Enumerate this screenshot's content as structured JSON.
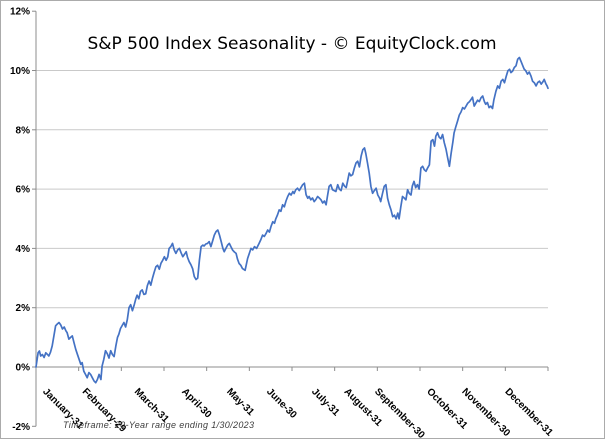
{
  "window": {
    "background": "#ffffff",
    "border_color": "#ababab"
  },
  "colors": {
    "line": "#4472c4",
    "grid": "#c9c9c9",
    "axis": "#8c8c8c",
    "tick": "#8c8c8c",
    "label_text": "#000000",
    "footnote_text": "#3c3c3c"
  },
  "chart_data": {
    "type": "line",
    "title": "S&P 500 Index Seasonality - © EquityClock.com",
    "footnote": "Timeframe: 20-Year range ending 1/30/2023",
    "xlabel": "",
    "ylabel": "",
    "y_axis": {
      "min": -2,
      "max": 12,
      "step": 2,
      "unit": "%"
    },
    "y_tick_labels": [
      "12%",
      "10%",
      "8%",
      "6%",
      "4%",
      "2%",
      "0%",
      "-2%"
    ],
    "y_tick_values": [
      12,
      10,
      8,
      6,
      4,
      2,
      0,
      -2
    ],
    "gridline_values": [
      2,
      4,
      6,
      8,
      10
    ],
    "x_axis_crosses_at": 0,
    "x_range_months": [
      0,
      12
    ],
    "x_tick_labels": [
      "January-31",
      "February-29",
      "March-31",
      "April-30",
      "May-31",
      "June-30",
      "July-31",
      "August-31",
      "September-30",
      "October-31",
      "November-30",
      "December-31"
    ],
    "grid": true,
    "legend_position": "none",
    "series": [
      {
        "color": "#4472c4",
        "x_unit": "months elapsed since Jan 1 (0 to 12)",
        "y_unit": "cumulative % change",
        "points": [
          [
            0.0,
            0.0
          ],
          [
            0.05,
            0.48
          ],
          [
            0.08,
            0.54
          ],
          [
            0.11,
            0.37
          ],
          [
            0.15,
            0.42
          ],
          [
            0.19,
            0.32
          ],
          [
            0.23,
            0.48
          ],
          [
            0.27,
            0.42
          ],
          [
            0.3,
            0.37
          ],
          [
            0.34,
            0.5
          ],
          [
            0.38,
            0.71
          ],
          [
            0.42,
            1.05
          ],
          [
            0.46,
            1.39
          ],
          [
            0.5,
            1.45
          ],
          [
            0.54,
            1.5
          ],
          [
            0.58,
            1.42
          ],
          [
            0.62,
            1.28
          ],
          [
            0.66,
            1.35
          ],
          [
            0.7,
            1.22
          ],
          [
            0.73,
            1.16
          ],
          [
            0.77,
            0.94
          ],
          [
            0.81,
            1.0
          ],
          [
            0.85,
            1.05
          ],
          [
            0.89,
            0.82
          ],
          [
            0.93,
            0.6
          ],
          [
            0.97,
            0.43
          ],
          [
            1.01,
            0.26
          ],
          [
            1.05,
            0.09
          ],
          [
            1.08,
            0.15
          ],
          [
            1.12,
            -0.14
          ],
          [
            1.16,
            -0.25
          ],
          [
            1.2,
            -0.36
          ],
          [
            1.24,
            -0.19
          ],
          [
            1.28,
            -0.25
          ],
          [
            1.32,
            -0.36
          ],
          [
            1.36,
            -0.47
          ],
          [
            1.4,
            -0.53
          ],
          [
            1.44,
            -0.42
          ],
          [
            1.48,
            -0.25
          ],
          [
            1.52,
            -0.42
          ],
          [
            1.55,
            0.03
          ],
          [
            1.59,
            0.26
          ],
          [
            1.63,
            0.55
          ],
          [
            1.67,
            0.45
          ],
          [
            1.71,
            0.3
          ],
          [
            1.75,
            0.55
          ],
          [
            1.79,
            0.42
          ],
          [
            1.83,
            0.35
          ],
          [
            1.87,
            0.7
          ],
          [
            1.91,
            1.0
          ],
          [
            1.94,
            1.1
          ],
          [
            1.98,
            1.3
          ],
          [
            2.02,
            1.4
          ],
          [
            2.06,
            1.5
          ],
          [
            2.1,
            1.35
          ],
          [
            2.14,
            1.6
          ],
          [
            2.18,
            2.0
          ],
          [
            2.22,
            2.1
          ],
          [
            2.26,
            1.9
          ],
          [
            2.3,
            2.08
          ],
          [
            2.34,
            2.3
          ],
          [
            2.37,
            2.42
          ],
          [
            2.41,
            2.3
          ],
          [
            2.45,
            2.55
          ],
          [
            2.49,
            2.6
          ],
          [
            2.53,
            2.45
          ],
          [
            2.57,
            2.47
          ],
          [
            2.61,
            2.75
          ],
          [
            2.65,
            2.9
          ],
          [
            2.69,
            2.76
          ],
          [
            2.73,
            3.0
          ],
          [
            2.77,
            3.2
          ],
          [
            2.81,
            3.38
          ],
          [
            2.85,
            3.43
          ],
          [
            2.89,
            3.3
          ],
          [
            2.93,
            3.5
          ],
          [
            2.97,
            3.6
          ],
          [
            3.01,
            3.72
          ],
          [
            3.05,
            3.6
          ],
          [
            3.09,
            3.72
          ],
          [
            3.12,
            4.0
          ],
          [
            3.16,
            4.06
          ],
          [
            3.2,
            4.17
          ],
          [
            3.24,
            3.95
          ],
          [
            3.28,
            3.83
          ],
          [
            3.32,
            3.95
          ],
          [
            3.36,
            4.0
          ],
          [
            3.4,
            3.85
          ],
          [
            3.44,
            3.72
          ],
          [
            3.48,
            3.8
          ],
          [
            3.52,
            3.89
          ],
          [
            3.55,
            3.7
          ],
          [
            3.59,
            3.55
          ],
          [
            3.63,
            3.45
          ],
          [
            3.67,
            3.32
          ],
          [
            3.71,
            3.05
          ],
          [
            3.75,
            2.95
          ],
          [
            3.79,
            3.0
          ],
          [
            3.83,
            3.6
          ],
          [
            3.87,
            4.06
          ],
          [
            3.91,
            4.11
          ],
          [
            3.94,
            4.08
          ],
          [
            3.98,
            4.15
          ],
          [
            4.02,
            4.17
          ],
          [
            4.06,
            4.23
          ],
          [
            4.1,
            4.06
          ],
          [
            4.14,
            4.25
          ],
          [
            4.18,
            4.45
          ],
          [
            4.22,
            4.57
          ],
          [
            4.26,
            4.62
          ],
          [
            4.3,
            4.45
          ],
          [
            4.34,
            4.23
          ],
          [
            4.38,
            4.0
          ],
          [
            4.41,
            3.89
          ],
          [
            4.45,
            4.0
          ],
          [
            4.49,
            4.11
          ],
          [
            4.53,
            4.17
          ],
          [
            4.57,
            4.05
          ],
          [
            4.61,
            3.94
          ],
          [
            4.65,
            3.88
          ],
          [
            4.69,
            3.83
          ],
          [
            4.72,
            3.65
          ],
          [
            4.76,
            3.49
          ],
          [
            4.8,
            3.43
          ],
          [
            4.84,
            3.32
          ],
          [
            4.9,
            3.26
          ],
          [
            4.96,
            3.66
          ],
          [
            5.04,
            4.0
          ],
          [
            5.08,
            3.95
          ],
          [
            5.12,
            4.06
          ],
          [
            5.17,
            4.0
          ],
          [
            5.23,
            4.17
          ],
          [
            5.27,
            4.3
          ],
          [
            5.31,
            4.45
          ],
          [
            5.35,
            4.4
          ],
          [
            5.39,
            4.5
          ],
          [
            5.43,
            4.62
          ],
          [
            5.47,
            4.55
          ],
          [
            5.51,
            4.75
          ],
          [
            5.55,
            4.9
          ],
          [
            5.59,
            4.85
          ],
          [
            5.62,
            5.0
          ],
          [
            5.66,
            5.13
          ],
          [
            5.7,
            5.3
          ],
          [
            5.74,
            5.25
          ],
          [
            5.78,
            5.47
          ],
          [
            5.82,
            5.4
          ],
          [
            5.86,
            5.6
          ],
          [
            5.9,
            5.75
          ],
          [
            5.94,
            5.86
          ],
          [
            5.98,
            5.8
          ],
          [
            6.02,
            5.92
          ],
          [
            6.05,
            5.85
          ],
          [
            6.09,
            5.98
          ],
          [
            6.13,
            6.03
          ],
          [
            6.17,
            5.95
          ],
          [
            6.21,
            6.05
          ],
          [
            6.25,
            6.15
          ],
          [
            6.29,
            6.2
          ],
          [
            6.33,
            5.81
          ],
          [
            6.37,
            5.69
          ],
          [
            6.4,
            5.75
          ],
          [
            6.44,
            5.64
          ],
          [
            6.48,
            5.7
          ],
          [
            6.52,
            5.58
          ],
          [
            6.56,
            5.65
          ],
          [
            6.6,
            5.75
          ],
          [
            6.64,
            5.7
          ],
          [
            6.68,
            5.64
          ],
          [
            6.72,
            5.53
          ],
          [
            6.76,
            5.6
          ],
          [
            6.8,
            5.47
          ],
          [
            6.83,
            5.75
          ],
          [
            6.87,
            6.09
          ],
          [
            6.91,
            6.15
          ],
          [
            6.95,
            5.98
          ],
          [
            6.99,
            5.95
          ],
          [
            7.03,
            5.92
          ],
          [
            7.07,
            6.15
          ],
          [
            7.11,
            6.0
          ],
          [
            7.15,
            5.95
          ],
          [
            7.19,
            6.2
          ],
          [
            7.23,
            6.1
          ],
          [
            7.27,
            6.05
          ],
          [
            7.3,
            6.26
          ],
          [
            7.34,
            6.54
          ],
          [
            7.38,
            6.45
          ],
          [
            7.42,
            6.49
          ],
          [
            7.46,
            6.7
          ],
          [
            7.5,
            6.88
          ],
          [
            7.54,
            6.94
          ],
          [
            7.58,
            6.75
          ],
          [
            7.62,
            7.11
          ],
          [
            7.66,
            7.33
          ],
          [
            7.7,
            7.39
          ],
          [
            7.73,
            7.2
          ],
          [
            7.77,
            6.88
          ],
          [
            7.81,
            6.54
          ],
          [
            7.85,
            6.09
          ],
          [
            7.89,
            5.86
          ],
          [
            7.93,
            5.95
          ],
          [
            7.97,
            6.03
          ],
          [
            8.01,
            5.8
          ],
          [
            8.05,
            5.7
          ],
          [
            8.08,
            5.58
          ],
          [
            8.12,
            5.85
          ],
          [
            8.16,
            6.09
          ],
          [
            8.2,
            6.15
          ],
          [
            8.24,
            5.69
          ],
          [
            8.28,
            5.47
          ],
          [
            8.32,
            5.3
          ],
          [
            8.36,
            5.07
          ],
          [
            8.4,
            5.12
          ],
          [
            8.44,
            5.0
          ],
          [
            8.48,
            5.19
          ],
          [
            8.51,
            5.0
          ],
          [
            8.55,
            5.4
          ],
          [
            8.59,
            5.75
          ],
          [
            8.63,
            5.7
          ],
          [
            8.67,
            5.64
          ],
          [
            8.71,
            5.98
          ],
          [
            8.75,
            5.85
          ],
          [
            8.79,
            5.8
          ],
          [
            8.82,
            6.1
          ],
          [
            8.86,
            6.26
          ],
          [
            8.9,
            6.05
          ],
          [
            8.94,
            6.15
          ],
          [
            8.98,
            6.0
          ],
          [
            9.02,
            6.71
          ],
          [
            9.06,
            6.77
          ],
          [
            9.1,
            6.65
          ],
          [
            9.14,
            6.6
          ],
          [
            9.18,
            6.72
          ],
          [
            9.22,
            6.82
          ],
          [
            9.26,
            7.62
          ],
          [
            9.3,
            7.67
          ],
          [
            9.34,
            7.45
          ],
          [
            9.37,
            7.78
          ],
          [
            9.41,
            7.9
          ],
          [
            9.45,
            7.75
          ],
          [
            9.49,
            7.7
          ],
          [
            9.53,
            7.84
          ],
          [
            9.57,
            7.56
          ],
          [
            9.61,
            7.35
          ],
          [
            9.65,
            7.05
          ],
          [
            9.69,
            6.77
          ],
          [
            9.73,
            7.2
          ],
          [
            9.77,
            7.6
          ],
          [
            9.8,
            7.9
          ],
          [
            9.84,
            8.1
          ],
          [
            9.88,
            8.29
          ],
          [
            9.92,
            8.5
          ],
          [
            9.96,
            8.6
          ],
          [
            10.0,
            8.75
          ],
          [
            10.04,
            8.7
          ],
          [
            10.08,
            8.8
          ],
          [
            10.12,
            8.9
          ],
          [
            10.16,
            8.95
          ],
          [
            10.2,
            9.03
          ],
          [
            10.23,
            9.1
          ],
          [
            10.27,
            8.8
          ],
          [
            10.31,
            8.9
          ],
          [
            10.35,
            9.0
          ],
          [
            10.39,
            8.95
          ],
          [
            10.43,
            9.08
          ],
          [
            10.47,
            9.14
          ],
          [
            10.51,
            8.95
          ],
          [
            10.54,
            8.86
          ],
          [
            10.58,
            8.92
          ],
          [
            10.62,
            8.75
          ],
          [
            10.66,
            8.8
          ],
          [
            10.7,
            8.72
          ],
          [
            10.73,
            9.0
          ],
          [
            10.78,
            9.3
          ],
          [
            10.82,
            9.48
          ],
          [
            10.86,
            9.4
          ],
          [
            10.9,
            9.64
          ],
          [
            10.94,
            9.7
          ],
          [
            10.98,
            9.59
          ],
          [
            11.02,
            9.8
          ],
          [
            11.06,
            9.99
          ],
          [
            11.1,
            10.04
          ],
          [
            11.13,
            9.93
          ],
          [
            11.17,
            9.98
          ],
          [
            11.21,
            10.1
          ],
          [
            11.25,
            10.16
          ],
          [
            11.29,
            10.38
          ],
          [
            11.33,
            10.44
          ],
          [
            11.37,
            10.3
          ],
          [
            11.41,
            10.16
          ],
          [
            11.44,
            10.05
          ],
          [
            11.48,
            9.99
          ],
          [
            11.52,
            9.88
          ],
          [
            11.56,
            9.95
          ],
          [
            11.6,
            9.82
          ],
          [
            11.64,
            9.64
          ],
          [
            11.68,
            9.59
          ],
          [
            11.72,
            9.48
          ],
          [
            11.76,
            9.6
          ],
          [
            11.8,
            9.64
          ],
          [
            11.84,
            9.54
          ],
          [
            11.88,
            9.62
          ],
          [
            11.91,
            9.7
          ],
          [
            11.95,
            9.55
          ],
          [
            11.98,
            9.48
          ],
          [
            12.0,
            9.4
          ]
        ]
      }
    ]
  }
}
